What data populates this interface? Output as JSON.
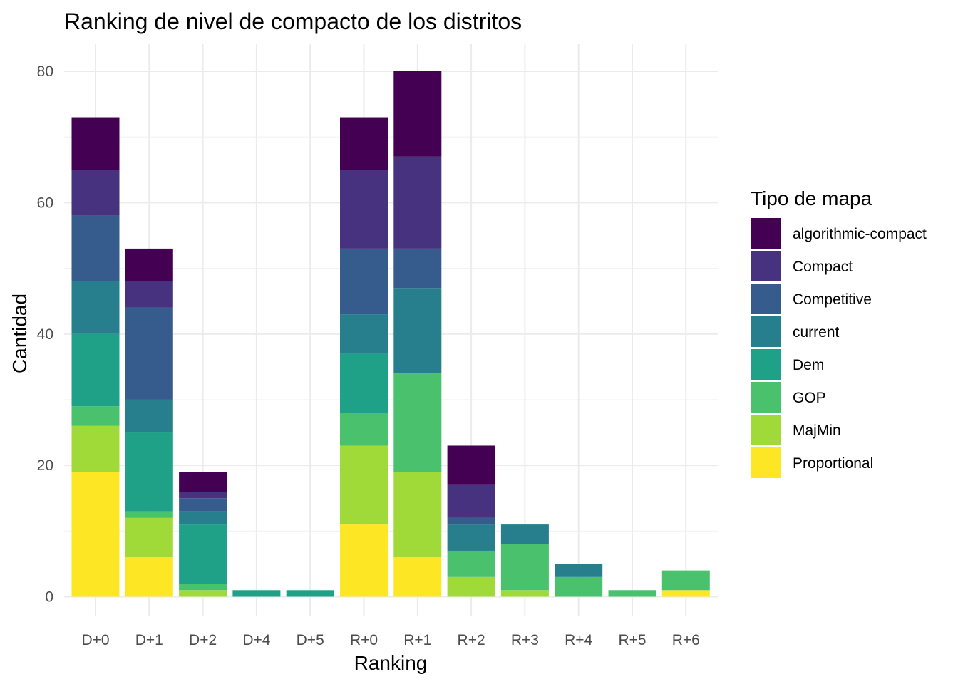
{
  "chart_data": {
    "type": "bar",
    "stacked": true,
    "title": "Ranking de nivel de compacto de los distritos",
    "xlabel": "Ranking",
    "ylabel": "Cantidad",
    "ylim": [
      0,
      84
    ],
    "yticks": [
      0,
      20,
      40,
      60,
      80
    ],
    "grid": true,
    "legend_title": "Tipo de mapa",
    "legend_position": "right",
    "categories": [
      "D+0",
      "D+1",
      "D+2",
      "D+4",
      "D+5",
      "R+0",
      "R+1",
      "R+2",
      "R+3",
      "R+4",
      "R+5",
      "R+6"
    ],
    "series": [
      {
        "name": "Proportional",
        "color": "#FDE725",
        "values": [
          19,
          6,
          0,
          0,
          0,
          11,
          6,
          0,
          0,
          0,
          0,
          1
        ]
      },
      {
        "name": "MajMin",
        "color": "#A0DA39",
        "values": [
          7,
          6,
          1,
          0,
          0,
          12,
          13,
          3,
          1,
          0,
          0,
          0
        ]
      },
      {
        "name": "GOP",
        "color": "#4AC16D",
        "values": [
          3,
          1,
          1,
          0,
          0,
          5,
          15,
          4,
          7,
          3,
          1,
          3
        ]
      },
      {
        "name": "Dem",
        "color": "#1FA187",
        "values": [
          11,
          12,
          9,
          1,
          1,
          9,
          0,
          0,
          0,
          0,
          0,
          0
        ]
      },
      {
        "name": "current",
        "color": "#277F8E",
        "values": [
          8,
          5,
          2,
          0,
          0,
          6,
          13,
          4,
          3,
          2,
          0,
          0
        ]
      },
      {
        "name": "Competitive",
        "color": "#365C8D",
        "values": [
          10,
          14,
          2,
          0,
          0,
          10,
          6,
          1,
          0,
          0,
          0,
          0
        ]
      },
      {
        "name": "Compact",
        "color": "#46327E",
        "values": [
          7,
          4,
          1,
          0,
          0,
          12,
          14,
          5,
          0,
          0,
          0,
          0
        ]
      },
      {
        "name": "algorithmic-compact",
        "color": "#440154",
        "values": [
          8,
          5,
          3,
          0,
          0,
          8,
          13,
          6,
          0,
          0,
          0,
          0
        ]
      }
    ],
    "legend_order": [
      "algorithmic-compact",
      "Compact",
      "Competitive",
      "current",
      "Dem",
      "GOP",
      "MajMin",
      "Proportional"
    ]
  }
}
